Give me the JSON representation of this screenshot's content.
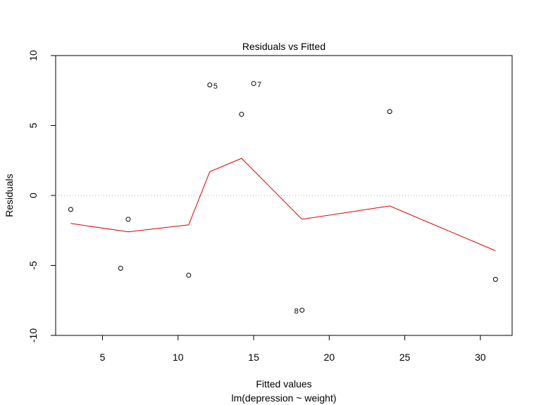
{
  "chart_data": {
    "type": "scatter",
    "title": "Residuals vs Fitted",
    "xlabel": "Fitted values",
    "sub": "lm(depression ~ weight)",
    "ylabel": "Residuals",
    "xlim": [
      1.9,
      32.1
    ],
    "ylim": [
      -10,
      10
    ],
    "xticks": [
      5,
      10,
      15,
      20,
      25,
      30
    ],
    "yticks": [
      -10,
      -5,
      0,
      5,
      10
    ],
    "x": [
      2.9,
      6.2,
      6.7,
      10.7,
      12.1,
      14.2,
      15.0,
      18.2,
      24.0,
      31.0
    ],
    "y": [
      -1.0,
      -5.2,
      -1.7,
      -5.7,
      7.9,
      5.8,
      8.0,
      -8.2,
      6.0,
      -6.0
    ],
    "point_labels": [
      {
        "index": 4,
        "label": "5"
      },
      {
        "index": 6,
        "label": "7"
      },
      {
        "index": 7,
        "label": "8"
      }
    ],
    "smooth": {
      "x": [
        2.9,
        6.7,
        10.7,
        12.1,
        14.2,
        18.2,
        24.0,
        31.0
      ],
      "y": [
        -2.0,
        -2.6,
        -2.1,
        1.7,
        2.65,
        -1.7,
        -0.75,
        -3.95
      ],
      "color": "#dd0000"
    },
    "reference_line": {
      "y": 0,
      "style": "dotted",
      "color": "#aaaaaa"
    },
    "grid": false
  }
}
